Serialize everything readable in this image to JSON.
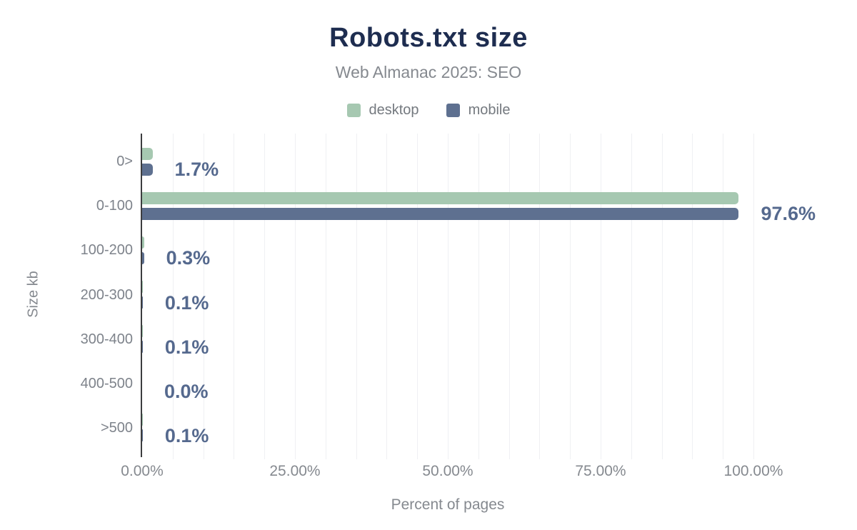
{
  "chart": {
    "title": "Robots.txt size",
    "subtitle": "Web Almanac 2025: SEO"
  },
  "chart_data": {
    "type": "bar",
    "orientation": "horizontal",
    "title": "Robots.txt size",
    "subtitle": "Web Almanac 2025: SEO",
    "xlabel": "Percent of pages",
    "ylabel": "Size kb",
    "categories": [
      "0>",
      "0-100",
      "100-200",
      "200-300",
      "300-400",
      "400-500",
      ">500"
    ],
    "series": [
      {
        "name": "desktop",
        "color": "#a6c8b1",
        "values": [
          1.7,
          97.6,
          0.3,
          0.1,
          0.1,
          0.0,
          0.1
        ]
      },
      {
        "name": "mobile",
        "color": "#5e7090",
        "values": [
          1.7,
          97.6,
          0.3,
          0.1,
          0.1,
          0.0,
          0.1
        ]
      }
    ],
    "value_labels": [
      "1.7%",
      "97.6%",
      "0.3%",
      "0.1%",
      "0.1%",
      "0.0%",
      "0.1%"
    ],
    "x_ticks": [
      "0.00%",
      "25.00%",
      "50.00%",
      "75.00%",
      "100.00%"
    ],
    "xlim": [
      0,
      100
    ],
    "grid_step_percent": 5,
    "grid": true,
    "legend_position": "top"
  },
  "colors": {
    "title": "#1e2d50",
    "subtitle_text": "#85898f",
    "axis_text": "#85898f",
    "category_text": "#7e838b",
    "value_label_text": "#55698e",
    "desktop_bar": "#a6c8b1",
    "mobile_bar": "#5e7090",
    "gridline": "#eff0f3",
    "axis_line": "#3c3d3f",
    "background": "#ffffff"
  }
}
